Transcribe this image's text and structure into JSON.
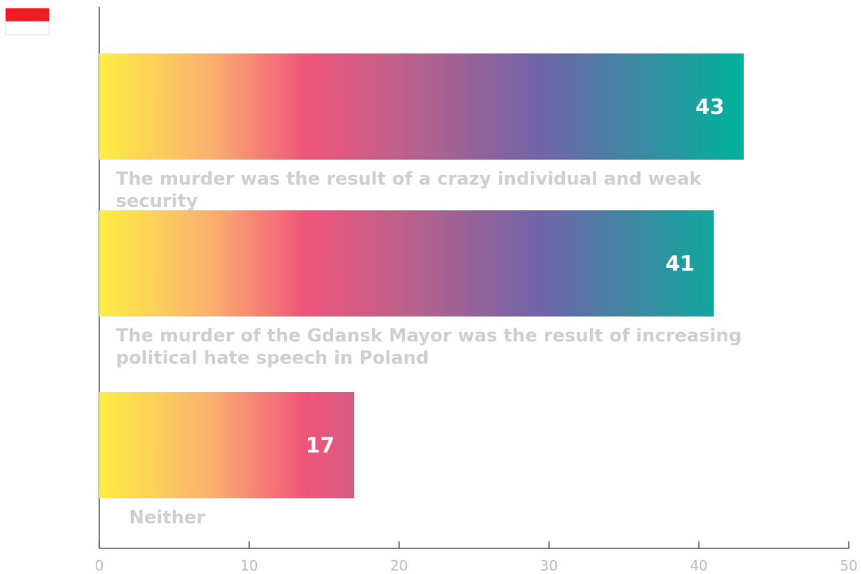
{
  "chart_data": {
    "type": "bar",
    "orientation": "horizontal",
    "categories": [
      "The murder was the result of a crazy individual and weak security",
      "The murder of the Gdansk Mayor was the result of increasing political hate speech in Poland",
      "Neither"
    ],
    "values": [
      43,
      41,
      17
    ],
    "xlim": [
      0,
      50
    ],
    "xticks": [
      0,
      10,
      20,
      30,
      40,
      50
    ]
  }
}
